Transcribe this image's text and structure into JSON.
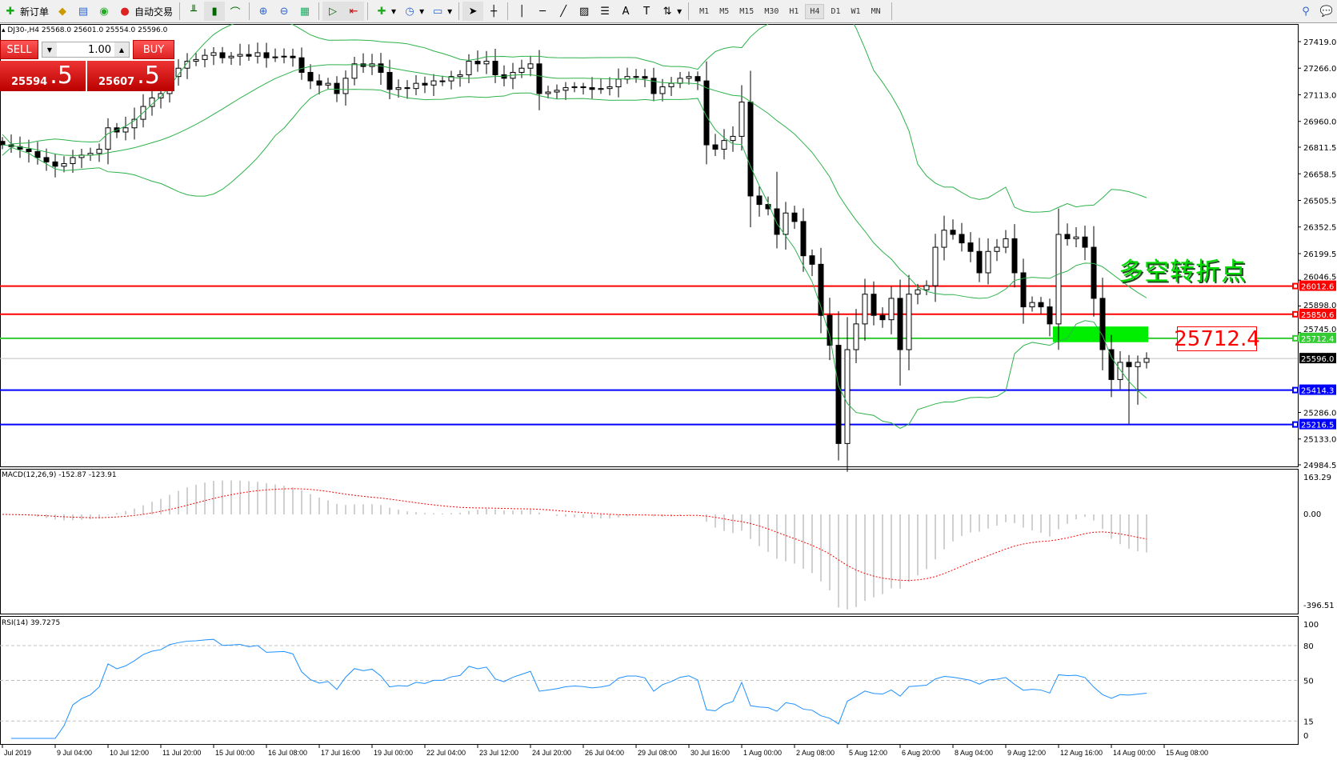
{
  "toolbar": {
    "new_order": "新订单",
    "auto_trading": "自动交易",
    "timeframes": [
      "M1",
      "M5",
      "M15",
      "M30",
      "H1",
      "H4",
      "D1",
      "W1",
      "MN"
    ],
    "active_timeframe": "H4"
  },
  "chart": {
    "symbol_line": "DJ30-,H4  25568.0 25601.0 25554.0 25596.0",
    "colors": {
      "bull": "#ffffff",
      "bear": "#000000",
      "bands": "#2db24a",
      "macd_signal": "#ff0000",
      "macd_hist": "#c0c0c0",
      "rsi": "#1e90ff"
    }
  },
  "one_click": {
    "sell_label": "SELL",
    "buy_label": "BUY",
    "lot": "1.00",
    "sell_main": "25594",
    "sell_big": ".5",
    "buy_main": "25607",
    "buy_big": ".5"
  },
  "annotation": {
    "text": "多空转折点",
    "level_label": "25712.4",
    "zone_top": 25780,
    "zone_bottom": 25690
  },
  "chart_data": {
    "type": "candlestick",
    "price_range": [
      24984.5,
      27419.0
    ],
    "price_ticks": [
      "27419.0",
      "27266.0",
      "27113.0",
      "26960.0",
      "26811.5",
      "26658.5",
      "26505.5",
      "26352.5",
      "26199.5",
      "26046.5",
      "25898.0",
      "25745.0",
      "25286.0",
      "25133.0",
      "24984.5"
    ],
    "closes": [
      26825,
      26815,
      26800,
      26786,
      26752,
      26727,
      26702,
      26717,
      26752,
      26766,
      26776,
      26800,
      26923,
      26899,
      26923,
      26972,
      27046,
      27095,
      27120,
      27218,
      27266,
      27306,
      27316,
      27340,
      27355,
      27326,
      27335,
      27345,
      27335,
      27355,
      27326,
      27331,
      27335,
      27326,
      27242,
      27193,
      27169,
      27179,
      27120,
      27208,
      27291,
      27276,
      27291,
      27242,
      27144,
      27154,
      27149,
      27179,
      27169,
      27193,
      27193,
      27218,
      27228,
      27306,
      27291,
      27306,
      27228,
      27208,
      27242,
      27266,
      27291,
      27120,
      27129,
      27139,
      27154,
      27159,
      27154,
      27144,
      27149,
      27159,
      27203,
      27218,
      27218,
      27208,
      27120,
      27159,
      27179,
      27208,
      27218,
      27193,
      26825,
      26800,
      26850,
      26874,
      27071,
      26531,
      26482,
      26457,
      26310,
      26433,
      26384,
      26187,
      26138,
      25844,
      25672,
      25107,
      25647,
      25795,
      25966,
      25844,
      25819,
      25942,
      25647,
      25966,
      25991,
      26015,
      26236,
      26334,
      26310,
      26261,
      26212,
      26089,
      26212,
      26236,
      26285,
      26089,
      25893,
      25918,
      25893,
      25795,
      26310,
      26285,
      26295,
      26236,
      25942,
      25647,
      25475,
      25574,
      25549,
      25574,
      25596
    ],
    "horizontal_lines": [
      {
        "price": 26012.6,
        "label": "26012.6",
        "color": "#ff0000"
      },
      {
        "price": 25850.6,
        "label": "25850.6",
        "color": "#ff0000"
      },
      {
        "price": 25712.4,
        "label": "25712.4",
        "color": "#33cc33"
      },
      {
        "price": 25414.3,
        "label": "25414.3",
        "color": "#0000ff"
      },
      {
        "price": 25216.5,
        "label": "25216.5",
        "color": "#0000ff"
      }
    ],
    "bid": {
      "price": 25596.0,
      "label": "25596.0"
    },
    "time_labels": [
      "Jul 2019",
      "9 Jul 04:00",
      "10 Jul 12:00",
      "11 Jul 20:00",
      "15 Jul 00:00",
      "16 Jul 08:00",
      "17 Jul 16:00",
      "19 Jul 00:00",
      "22 Jul 04:00",
      "23 Jul 12:00",
      "24 Jul 20:00",
      "26 Jul 04:00",
      "29 Jul 08:00",
      "30 Jul 16:00",
      "1 Aug 00:00",
      "2 Aug 08:00",
      "5 Aug 12:00",
      "6 Aug 20:00",
      "8 Aug 04:00",
      "9 Aug 12:00",
      "12 Aug 16:00",
      "14 Aug 00:00",
      "15 Aug 08:00"
    ],
    "bollinger": {
      "period": 20,
      "deviation": 2
    },
    "macd": {
      "title": "MACD(12,26,9) -152.87 -123.91",
      "range": [
        -396.51,
        163.29
      ],
      "ticks": [
        "163.29",
        "0.00",
        "-396.51"
      ]
    },
    "rsi": {
      "title": "RSI(14) 39.7275",
      "range": [
        0,
        100
      ],
      "ticks": [
        "100",
        "80",
        "50",
        "15",
        "0"
      ],
      "levels": [
        80,
        50,
        15
      ]
    }
  }
}
